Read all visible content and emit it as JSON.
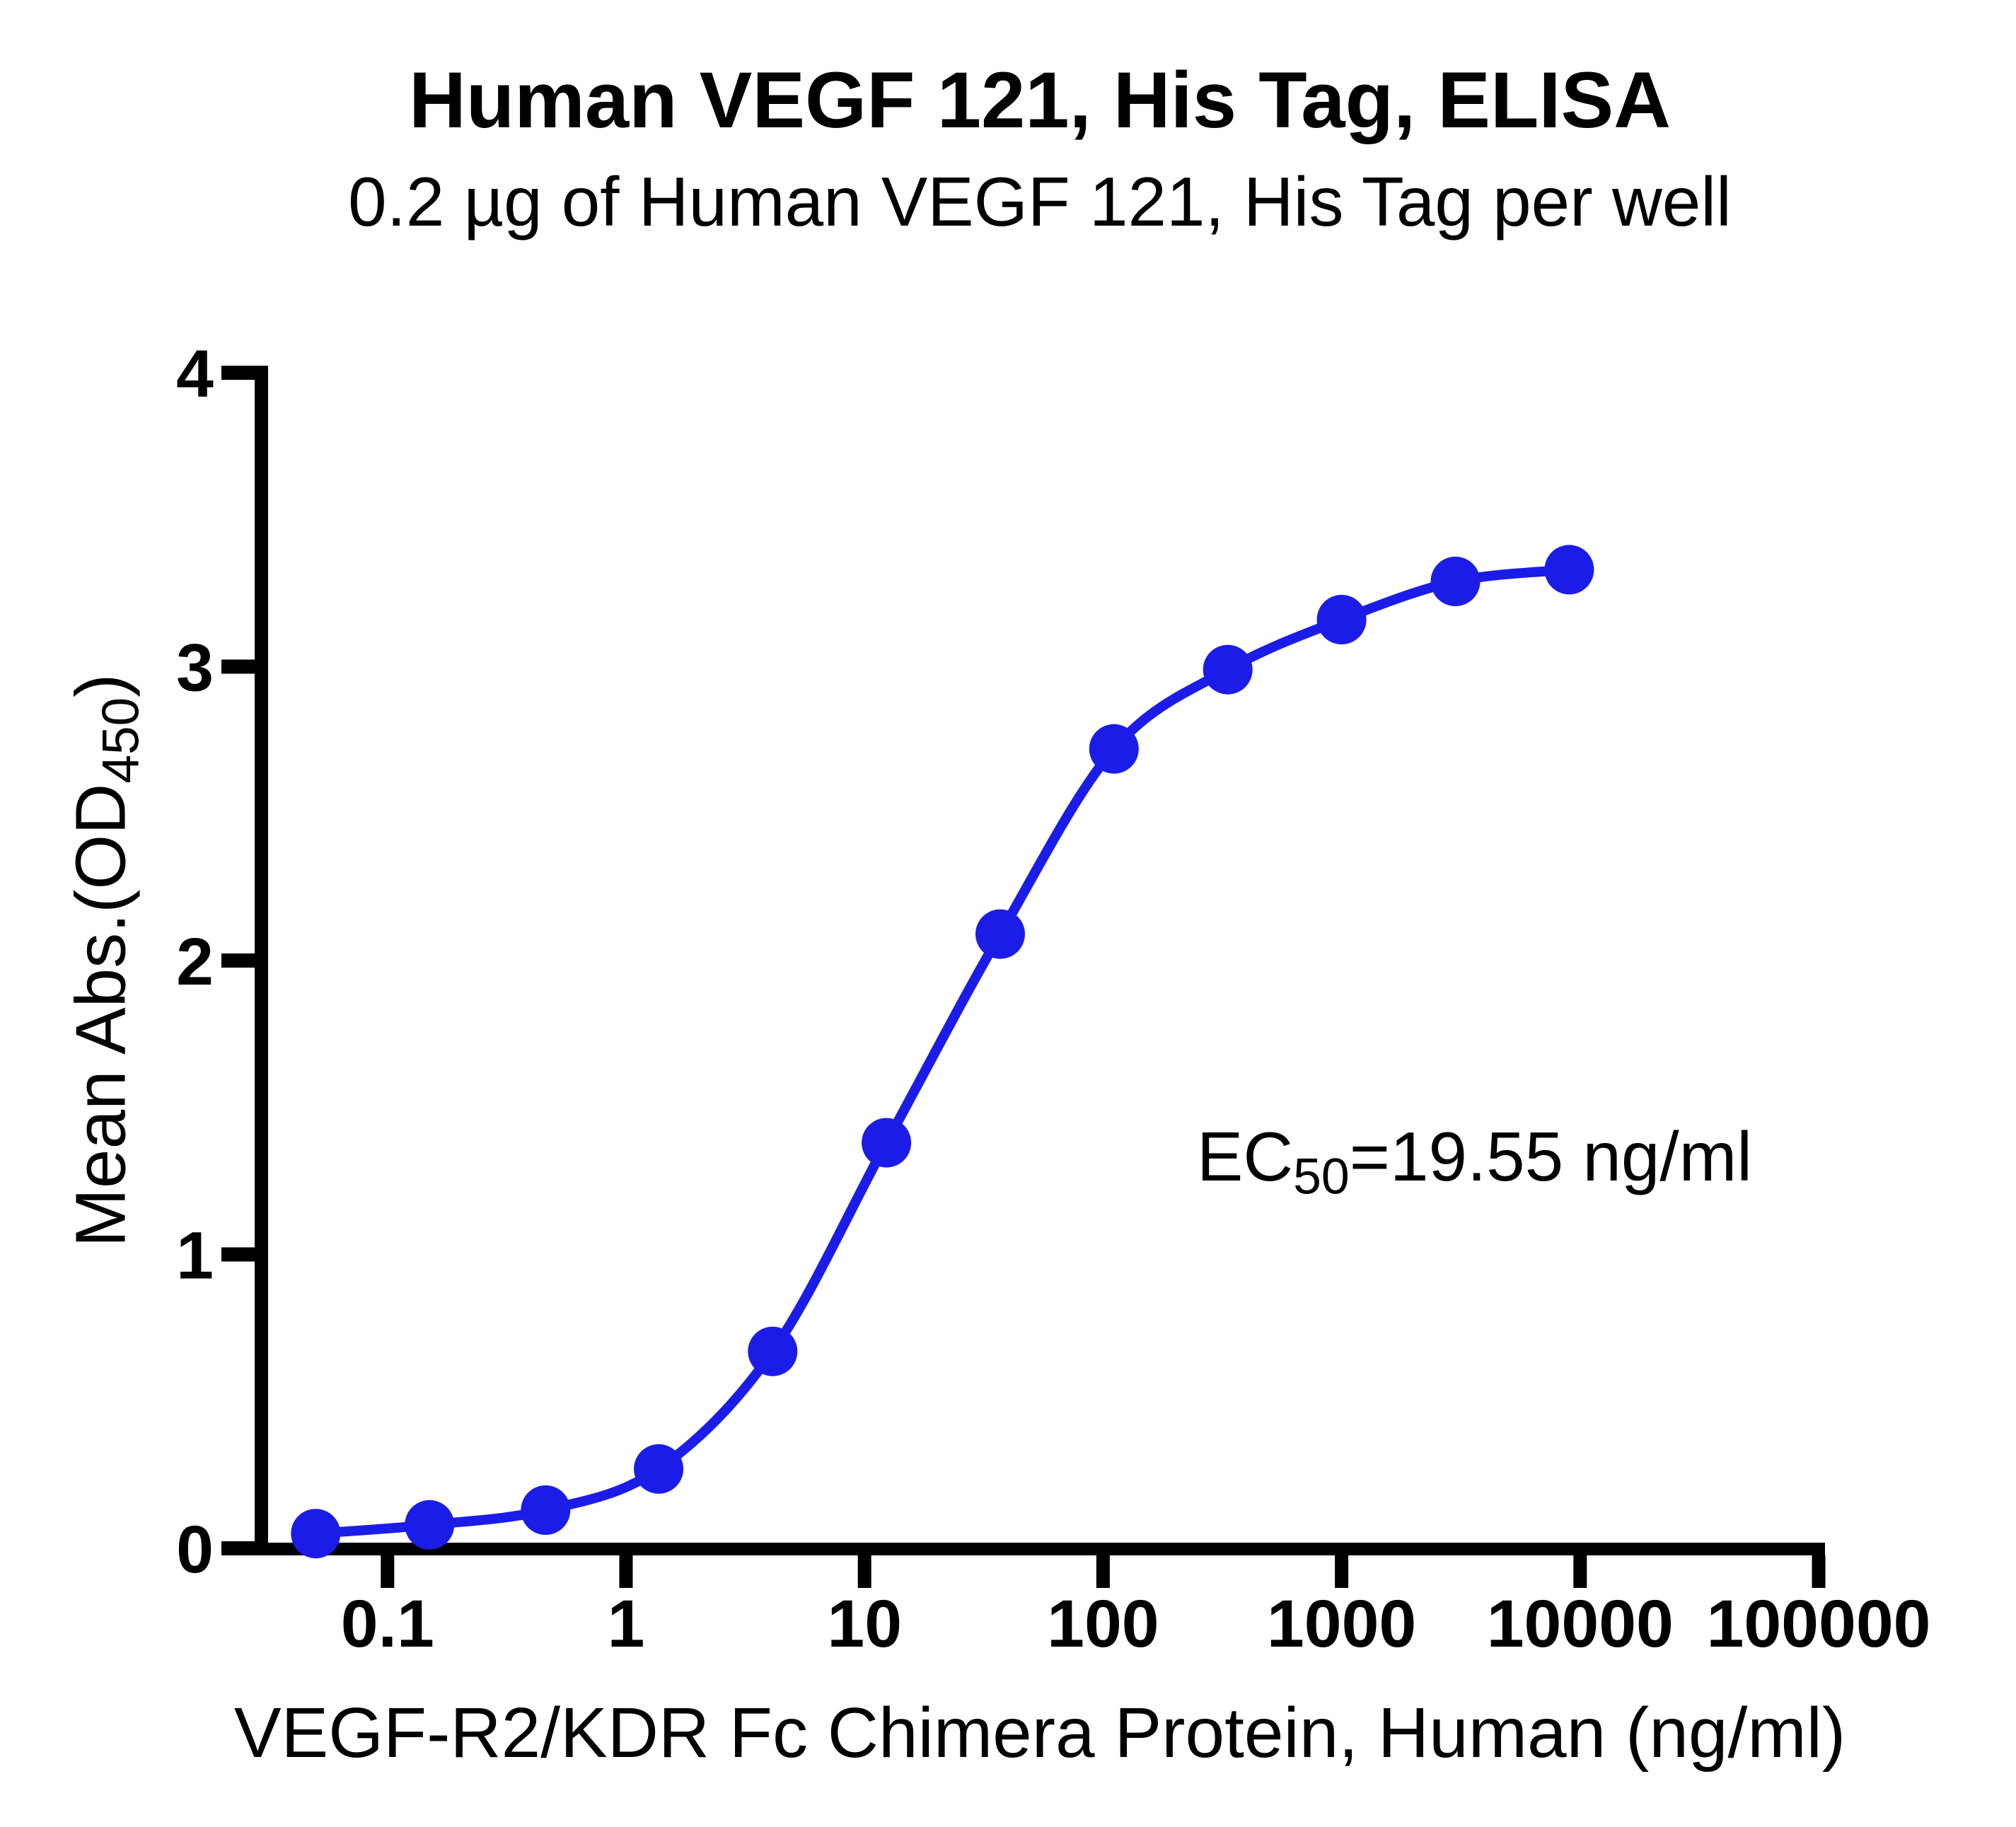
{
  "header": {
    "title": "Human VEGF 121, His Tag, ELISA",
    "subtitle": "0.2 µg of Human VEGF 121, His Tag per well"
  },
  "chart_data": {
    "type": "scatter-line",
    "title": "Human VEGF 121, His Tag, ELISA",
    "subtitle": "0.2 µg of Human VEGF 121, His Tag per well",
    "xlabel": "VEGF-R2/KDR Fc Chimera Protein, Human (ng/ml)",
    "ylabel_prefix": "Mean Abs.(OD",
    "ylabel_sub": "450",
    "ylabel_suffix": ")",
    "x_scale": "log10",
    "grid": false,
    "legend_position": "none",
    "x_ticks": [
      "0.1",
      "1",
      "10",
      "100",
      "1000",
      "10000",
      "100000"
    ],
    "y_ticks": [
      "0",
      "1",
      "2",
      "3",
      "4"
    ],
    "ylim": [
      0,
      4
    ],
    "xlim_log": [
      -1.55,
      5.03
    ],
    "series": [
      {
        "name": "Human VEGF 121, His Tag",
        "color": "#1c1ce8",
        "marker": "circle",
        "x": [
          0.05,
          0.15,
          0.46,
          1.37,
          4.12,
          12.35,
          37.04,
          111.11,
          333.33,
          1000,
          3000,
          9000
        ],
        "y": [
          0.05,
          0.08,
          0.13,
          0.27,
          0.67,
          1.38,
          2.09,
          2.72,
          2.99,
          3.16,
          3.29,
          3.33
        ]
      }
    ],
    "annotation": {
      "prefix": "EC",
      "sub": "50",
      "value": "=19.55 ng/ml"
    },
    "axis_color": "#000000",
    "background": "#ffffff"
  }
}
